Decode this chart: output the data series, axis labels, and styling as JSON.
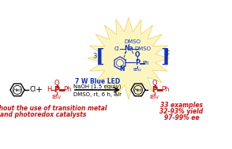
{
  "bg_color": "#ffffff",
  "starburst_color": "#fdf5c0",
  "starburst_edge": "#e8d060",
  "blue_text_color": "#1133bb",
  "red_text_color": "#cc1111",
  "black_text_color": "#000000",
  "reaction_top_text": "7 W Blue LED",
  "reaction_mid_text": "NaOH (1.5 equiv)",
  "reaction_bot_text": "DMSO, rt, 6 h, Air",
  "bottom_left_line1": "Without the use of transition metal",
  "bottom_left_line2": "and photoredox catalysts",
  "bottom_right_line1": "33 examples",
  "bottom_right_line2": "32-93% yield",
  "bottom_right_line3": "97-99% ee",
  "figsize": [
    2.94,
    1.89
  ],
  "dpi": 100
}
